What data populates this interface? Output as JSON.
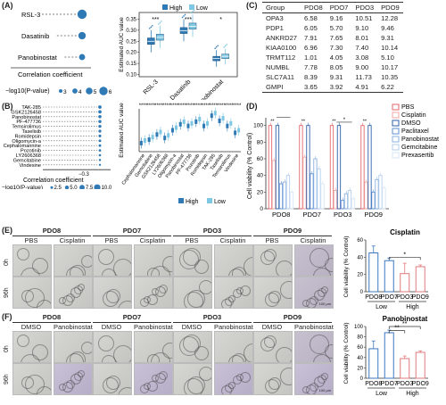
{
  "panels": {
    "A": {
      "label": "(A)",
      "drugs": [
        "RSL-3",
        "Dasatinib",
        "Panobinostat"
      ],
      "dot_xlabel": "Correlation coefficient",
      "size_legend_title": "−log10(P-value)",
      "size_legend_values": [
        "3",
        "4",
        "5",
        "6"
      ],
      "box_ylabel": "Estimated AUC value",
      "yticks": [
        "0.10",
        "0.15",
        "0.20",
        "0.25",
        "0.30",
        "0.35"
      ],
      "legend": [
        "High",
        "Low"
      ],
      "sig": [
        "***",
        "***",
        "*"
      ],
      "colors": {
        "high": "#2f79b5",
        "low": "#7ec8e3"
      }
    },
    "B": {
      "label": "(B)",
      "drugs": [
        "TAK-285",
        "GSK2126458",
        "Panobinostat",
        "PF-477736",
        "Temsirolimus",
        "Taselisib",
        "Romidepsin",
        "Oligomycin-a",
        "Cephalomannine",
        "Pozotinib",
        "LY2606368",
        "Gemcitabine",
        "Vindesine"
      ],
      "dot_xlabel": "Correlation coefficient",
      "xtick": "−0.3",
      "size_legend_title": "−log10(P-value)",
      "size_legend_values": [
        "2.5",
        "5.0",
        "7.5",
        "10.0"
      ],
      "box_ylabel": "Estimated AUC value",
      "box_drugs": [
        "Cephalomannine",
        "Gemcitabine",
        "GSK2126458",
        "LY2606368",
        "Oligomycin-a",
        "Panobinostat",
        "PF-477736",
        "Pozotinib",
        "Romidepsin",
        "TAK-285",
        "Taselisib",
        "Temsirolimus",
        "Vindesine"
      ],
      "legend": [
        "High",
        "Low"
      ]
    },
    "C": {
      "label": "(C)",
      "headers": [
        "Group",
        "PDO8",
        "PDO7",
        "PDO3",
        "PDO9"
      ],
      "rows": [
        [
          "OPA3",
          "6.58",
          "9.16",
          "10.51",
          "12.28"
        ],
        [
          "PDP1",
          "6.05",
          "5.70",
          "9.10",
          "9.46"
        ],
        [
          "ANKRD27",
          "7.91",
          "7.65",
          "8.01",
          "9.31"
        ],
        [
          "KIAA0100",
          "6.96",
          "7.30",
          "7.40",
          "10.14"
        ],
        [
          "TRMT112",
          "1.01",
          "4.05",
          "3.08",
          "5.10"
        ],
        [
          "NUMBL",
          "7.78",
          "8.05",
          "9.00",
          "10.17"
        ],
        [
          "SLC7A11",
          "8.39",
          "9.31",
          "11.73",
          "10.35"
        ],
        [
          "GMPI",
          "3.65",
          "3.92",
          "4.91",
          "6.22"
        ]
      ]
    },
    "D": {
      "label": "(D)",
      "ylabel": "Cell viability (% Control)",
      "yticks": [
        "0",
        "20",
        "40",
        "60",
        "80",
        "100"
      ],
      "groups": [
        "PDO8",
        "PDO7",
        "PDO3",
        "PDO9"
      ],
      "legend": [
        "PBS",
        "Cisplatin",
        "DMSO",
        "Paclitaxel",
        "Panobinostat",
        "Gemcitabine",
        "Prexasertib"
      ],
      "colors": [
        "#e0666b",
        "#f1a7a3",
        "#2d5fa8",
        "#5f8fd0",
        "#8ab0e0",
        "#b3cdee",
        "#d7e5f6"
      ]
    },
    "E": {
      "label": "(E)",
      "pdos": [
        "PDO8",
        "PDO7",
        "PDO3",
        "PDO9"
      ],
      "conds": [
        "PBS",
        "Cisplatin"
      ],
      "rows": [
        "0h",
        "96h"
      ],
      "scalebar": "100 μm",
      "bar": {
        "title": "Cisplatin",
        "ylabel": "Cell viability (% Control)",
        "yticks": [
          "0",
          "20",
          "40",
          "60"
        ],
        "categories": [
          "PDO8",
          "PDO7",
          "PDO3",
          "PDO9"
        ],
        "groups": [
          "Low",
          "High"
        ],
        "sig": "*"
      }
    },
    "F": {
      "label": "(F)",
      "pdos": [
        "PDO8",
        "PDO7",
        "PDO3",
        "PDO9"
      ],
      "conds": [
        "DMSO",
        "Panobinostat"
      ],
      "rows": [
        "0h",
        "96h"
      ],
      "scalebar": "100 μm",
      "bar": {
        "title": "Panobinostat",
        "ylabel": "Cell viability (% Control)",
        "yticks": [
          "0",
          "20",
          "40",
          "60",
          "80",
          "100"
        ],
        "categories": [
          "PDO8",
          "PDO7",
          "PDO3",
          "PDO9"
        ],
        "groups": [
          "Low",
          "High"
        ],
        "sig": [
          "**",
          "**"
        ]
      }
    }
  },
  "chart_data": [
    {
      "type": "scatter",
      "panel": "A-left",
      "categories": [
        "RSL-3",
        "Dasatinib",
        "Panobinostat"
      ],
      "values": [
        -0.32,
        -0.3,
        -0.33
      ],
      "xlabel": "Correlation coefficient",
      "size_values": [
        6.5,
        5.2,
        4.3
      ]
    },
    {
      "type": "box",
      "panel": "A-right",
      "categories": [
        "RSL-3",
        "Dasatinib",
        "Panobinostat"
      ],
      "ylabel": "Estimated AUC value",
      "ylim": [
        0.09,
        0.38
      ],
      "series": [
        {
          "name": "High",
          "median": [
            0.25,
            0.298,
            0.172
          ],
          "q1": [
            0.236,
            0.285,
            0.162
          ],
          "q3": [
            0.265,
            0.312,
            0.182
          ],
          "min": [
            0.2,
            0.25,
            0.135
          ],
          "max": [
            0.3,
            0.35,
            0.21
          ]
        },
        {
          "name": "Low",
          "median": [
            0.268,
            0.318,
            0.182
          ],
          "q1": [
            0.255,
            0.305,
            0.172
          ],
          "q3": [
            0.282,
            0.332,
            0.192
          ],
          "min": [
            0.22,
            0.27,
            0.145
          ],
          "max": [
            0.32,
            0.37,
            0.215
          ]
        }
      ]
    },
    {
      "type": "scatter",
      "panel": "B-left",
      "categories": [
        "TAK-285",
        "GSK2126458",
        "Panobinostat",
        "PF-477736",
        "Temsirolimus",
        "Taselisib",
        "Romidepsin",
        "Oligomycin-a",
        "Cephalomannine",
        "Pozotinib",
        "LY2606368",
        "Gemcitabine",
        "Vindesine"
      ],
      "values": [
        -0.36,
        -0.34,
        -0.33,
        -0.33,
        -0.32,
        -0.32,
        -0.31,
        -0.31,
        -0.31,
        -0.3,
        -0.3,
        -0.3,
        -0.3
      ],
      "xlabel": "Correlation coefficient"
    },
    {
      "type": "box",
      "panel": "B-right",
      "categories": [
        "Cephalomannine",
        "Gemcitabine",
        "GSK2126458",
        "LY2606368",
        "Oligomycin-a",
        "Panobinostat",
        "PF-477736",
        "Pozotinib",
        "Romidepsin",
        "TAK-285",
        "Taselisib",
        "Temsirolimus",
        "Vindesine"
      ],
      "ylabel": "Estimated AUC value",
      "series": [
        {
          "name": "High",
          "values": [
            0.2,
            0.24,
            0.3,
            0.26,
            0.35,
            0.42,
            0.4,
            0.45,
            0.4,
            0.52,
            0.46,
            0.4,
            0.32
          ]
        },
        {
          "name": "Low",
          "values": [
            0.23,
            0.27,
            0.33,
            0.29,
            0.38,
            0.45,
            0.43,
            0.48,
            0.43,
            0.55,
            0.49,
            0.43,
            0.35
          ]
        }
      ]
    },
    {
      "type": "bar",
      "panel": "D",
      "categories": [
        "PDO8",
        "PDO7",
        "PDO3",
        "PDO9"
      ],
      "ylabel": "Cell viability (% Control)",
      "ylim": [
        0,
        105
      ],
      "series": [
        {
          "name": "PBS",
          "values": [
            100,
            100,
            100,
            100
          ]
        },
        {
          "name": "Cisplatin",
          "values": [
            58,
            62,
            22,
            32
          ]
        },
        {
          "name": "DMSO",
          "values": [
            100,
            100,
            100,
            100
          ]
        },
        {
          "name": "Paclitaxel",
          "values": [
            30,
            42,
            10,
            20
          ]
        },
        {
          "name": "Panobinostat",
          "values": [
            32,
            60,
            18,
            35
          ]
        },
        {
          "name": "Gemcitabine",
          "values": [
            40,
            48,
            22,
            40
          ]
        },
        {
          "name": "Prexasertib",
          "values": [
            20,
            30,
            12,
            25
          ]
        }
      ]
    },
    {
      "type": "bar",
      "panel": "E",
      "title": "Cisplatin",
      "categories": [
        "PDO8",
        "PDO7",
        "PDO3",
        "PDO9"
      ],
      "values": [
        45,
        36,
        21,
        29
      ],
      "errors": [
        8,
        3,
        12,
        2
      ],
      "ylabel": "Cell viability (% Control)",
      "ylim": [
        0,
        60
      ]
    },
    {
      "type": "bar",
      "panel": "F",
      "title": "Panobinostat",
      "categories": [
        "PDO8",
        "PDO7",
        "PDO3",
        "PDO9"
      ],
      "values": [
        57,
        88,
        38,
        50
      ],
      "errors": [
        15,
        5,
        5,
        3
      ],
      "ylabel": "Cell viability (% Control)",
      "ylim": [
        0,
        100
      ]
    }
  ]
}
